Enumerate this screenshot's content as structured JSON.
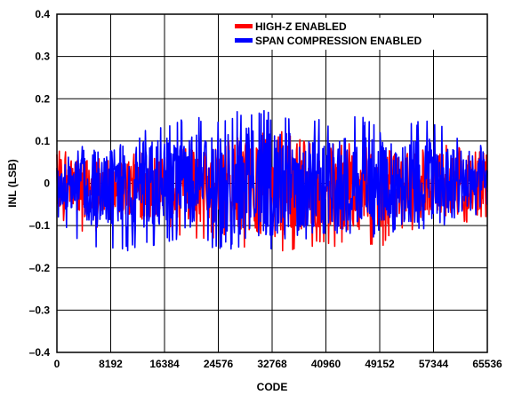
{
  "chart_data": {
    "type": "line",
    "title": "",
    "xlabel": "CODE",
    "ylabel": "INL (LSB)",
    "xlim": [
      0,
      65536
    ],
    "ylim": [
      -0.4,
      0.4
    ],
    "grid": true,
    "legend_position": "top-right",
    "x_ticks": [
      "0",
      "8192",
      "16384",
      "24576",
      "32768",
      "40960",
      "49152",
      "57344",
      "65536"
    ],
    "y_ticks": [
      "0.4",
      "0.3",
      "0.2",
      "0.1",
      "0",
      "-0.1",
      "-0.2",
      "-0.3",
      "-0.4"
    ],
    "series": [
      {
        "name": "HIGH-Z ENABLED",
        "color": "#ff0000",
        "x": [
          0,
          4096,
          8192,
          12288,
          16384,
          20480,
          24576,
          28672,
          32768,
          36864,
          40960,
          45056,
          49152,
          53248,
          57344,
          61440,
          65536
        ],
        "upper": [
          0.08,
          0.07,
          0.06,
          0.08,
          0.07,
          0.09,
          0.1,
          0.12,
          0.13,
          0.12,
          0.1,
          0.1,
          0.09,
          0.08,
          0.09,
          0.09,
          0.07
        ],
        "lower": [
          -0.08,
          -0.12,
          -0.11,
          -0.13,
          -0.11,
          -0.14,
          -0.13,
          -0.16,
          -0.19,
          -0.16,
          -0.15,
          -0.17,
          -0.16,
          -0.11,
          -0.12,
          -0.1,
          -0.08
        ]
      },
      {
        "name": "SPAN COMPRESSION ENABLED",
        "color": "#0000ff",
        "x": [
          0,
          4096,
          8192,
          12288,
          16384,
          20480,
          24576,
          28672,
          32768,
          36864,
          40960,
          45056,
          49152,
          53248,
          57344,
          61440,
          65536
        ],
        "upper": [
          0.06,
          0.1,
          0.08,
          0.12,
          0.14,
          0.16,
          0.15,
          0.18,
          0.17,
          0.16,
          0.15,
          0.17,
          0.14,
          0.16,
          0.15,
          0.12,
          0.08
        ],
        "lower": [
          -0.08,
          -0.15,
          -0.17,
          -0.16,
          -0.14,
          -0.14,
          -0.16,
          -0.17,
          -0.16,
          -0.14,
          -0.13,
          -0.12,
          -0.13,
          -0.1,
          -0.12,
          -0.1,
          -0.07
        ]
      }
    ]
  }
}
